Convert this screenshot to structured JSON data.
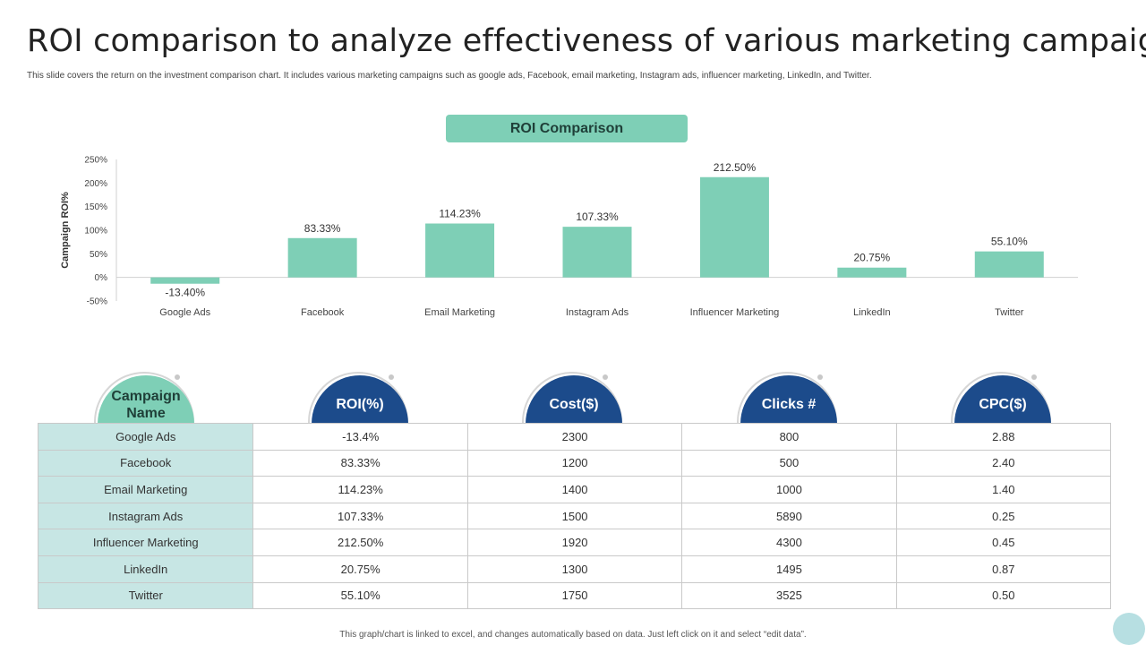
{
  "title": "ROI comparison to analyze effectiveness of various marketing campaigns",
  "subtitle": "This slide covers the return on the investment comparison chart. It includes various marketing campaigns such as google ads, Facebook, email marketing, Instagram ads, influencer marketing, LinkedIn,  and Twitter.",
  "chart_data": {
    "type": "bar",
    "title": "ROI Comparison",
    "ylabel": "Campaign ROI%",
    "xlabel": "",
    "categories": [
      "Google Ads",
      "Facebook",
      "Email Marketing",
      "Instagram Ads",
      "Influencer Marketing",
      "LinkedIn",
      "Twitter"
    ],
    "values": [
      -13.4,
      83.33,
      114.23,
      107.33,
      212.5,
      20.75,
      55.1
    ],
    "value_labels": [
      "-13.40%",
      "83.33%",
      "114.23%",
      "107.33%",
      "212.50%",
      "20.75%",
      "55.10%"
    ],
    "ylim": [
      -50,
      250
    ],
    "yticks": [
      250,
      200,
      150,
      100,
      50,
      0,
      -50
    ],
    "ytick_labels": [
      "250%",
      "200%",
      "150%",
      "100%",
      "50%",
      "0%",
      "-50%"
    ],
    "bar_color": "#7ecfb6",
    "grid": false
  },
  "table": {
    "headers": [
      "Campaign Name",
      "ROI(%)",
      "Cost($)",
      "Clicks #",
      "CPC($)"
    ],
    "rows": [
      [
        "Google Ads",
        "-13.4%",
        "2300",
        "800",
        "2.88"
      ],
      [
        "Facebook",
        "83.33%",
        "1200",
        "500",
        "2.40"
      ],
      [
        "Email Marketing",
        "114.23%",
        "1400",
        "1000",
        "1.40"
      ],
      [
        "Instagram  Ads",
        "107.33%",
        "1500",
        "5890",
        "0.25"
      ],
      [
        "Influencer  Marketing",
        "212.50%",
        "1920",
        "4300",
        "0.45"
      ],
      [
        "LinkedIn",
        "20.75%",
        "1300",
        "1495",
        "0.87"
      ],
      [
        "Twitter",
        "55.10%",
        "1750",
        "3525",
        "0.50"
      ]
    ]
  },
  "colors": {
    "accent_green": "#7ecfb6",
    "accent_blue": "#1c4b8b",
    "name_cell": "#c7e6e4"
  },
  "footnote": "This graph/chart is linked to excel, and changes automatically based on data. Just left click on it and select “edit data”."
}
